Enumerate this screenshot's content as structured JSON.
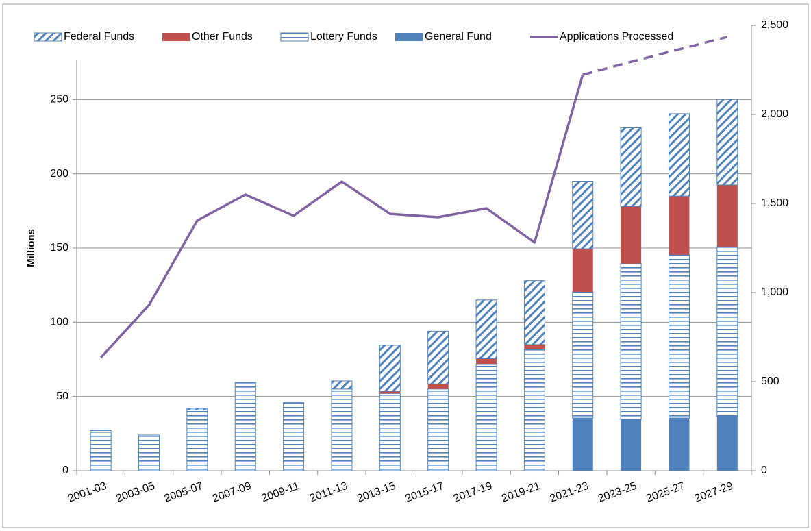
{
  "chart_data": {
    "type": "bar",
    "y_label": "Millions",
    "categories": [
      "2001-03",
      "2003-05",
      "2005-07",
      "2007-09",
      "2009-11",
      "2011-13",
      "2013-15",
      "2015-17",
      "2017-19",
      "2019-21",
      "2021-23",
      "2023-25",
      "2025-27",
      "2027-29"
    ],
    "series": [
      {
        "name": "Federal Funds",
        "color": "#4f81bd",
        "pattern": "diagonal",
        "values": [
          0,
          0,
          1,
          0,
          0,
          5.5,
          31,
          35.5,
          39.5,
          43,
          45.5,
          53,
          55.5,
          57.5
        ]
      },
      {
        "name": "Other Funds",
        "color": "#c0504d",
        "pattern": "solid",
        "values": [
          0,
          0,
          0,
          0,
          0,
          0,
          1.5,
          3.5,
          3.5,
          3,
          29,
          38.5,
          39.5,
          41.5
        ]
      },
      {
        "name": "Lottery Funds",
        "color": "#4f81bd",
        "pattern": "horizontal",
        "values": [
          27,
          24,
          41,
          59.5,
          46,
          55,
          52,
          55,
          72,
          82,
          85,
          105,
          110,
          114.5
        ]
      },
      {
        "name": "General Fund",
        "color": "#4f81bd",
        "pattern": "solid",
        "values": [
          0,
          0,
          0,
          0,
          0,
          0,
          0,
          0,
          0,
          0,
          35.5,
          34.5,
          35.5,
          36.5
        ]
      },
      {
        "name": "Applications Processed",
        "color": "#8064a2",
        "type": "line",
        "axis": "y2",
        "dashed_from": 10,
        "values": [
          635,
          930,
          1404,
          1550,
          1431,
          1623,
          1442,
          1423,
          1473,
          1281,
          2223,
          2295,
          2365,
          2435
        ]
      }
    ],
    "ylim": [
      0,
      300
    ],
    "yticks": [
      0,
      50,
      100,
      150,
      200,
      250
    ],
    "y2lim": [
      0,
      2500
    ],
    "y2ticks": [
      0,
      500,
      {
        "value": 1000,
        "label": "1,000"
      },
      {
        "value": 1500,
        "label": "1,500"
      },
      {
        "value": 2000,
        "label": "2,000"
      },
      {
        "value": 2500,
        "label": "2,500"
      }
    ],
    "grid": true,
    "legend": "top"
  }
}
